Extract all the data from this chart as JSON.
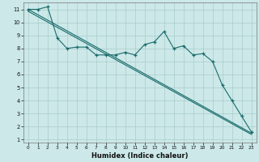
{
  "xlabel": "Humidex (Indice chaleur)",
  "bg_color": "#cce8e8",
  "grid_color": "#aacccc",
  "line_color": "#1a6b6b",
  "xlim": [
    -0.5,
    23.5
  ],
  "ylim": [
    0.8,
    11.5
  ],
  "xticks": [
    0,
    1,
    2,
    3,
    4,
    5,
    6,
    7,
    8,
    9,
    10,
    11,
    12,
    13,
    14,
    15,
    16,
    17,
    18,
    19,
    20,
    21,
    22,
    23
  ],
  "yticks": [
    1,
    2,
    3,
    4,
    5,
    6,
    7,
    8,
    9,
    10,
    11
  ],
  "line1_x": [
    0,
    1,
    2,
    3,
    4,
    5,
    6,
    7,
    8,
    9,
    10,
    11,
    12,
    13,
    14,
    15,
    16,
    17,
    18,
    19,
    20,
    21,
    22,
    23
  ],
  "line1_y": [
    11.0,
    11.0,
    11.2,
    8.8,
    8.0,
    8.1,
    8.1,
    7.5,
    7.5,
    7.5,
    7.7,
    7.5,
    8.3,
    8.5,
    9.3,
    8.0,
    8.2,
    7.5,
    7.6,
    7.0,
    5.2,
    4.0,
    2.8,
    1.6
  ],
  "line2_y_start": 11.0,
  "line2_y_end": 1.5,
  "line3_y_start": 11.0,
  "line3_y_end": 1.5,
  "line2_x_start": 0,
  "line2_x_end": 23,
  "line3_x_start": 0,
  "line3_x_end": 23
}
